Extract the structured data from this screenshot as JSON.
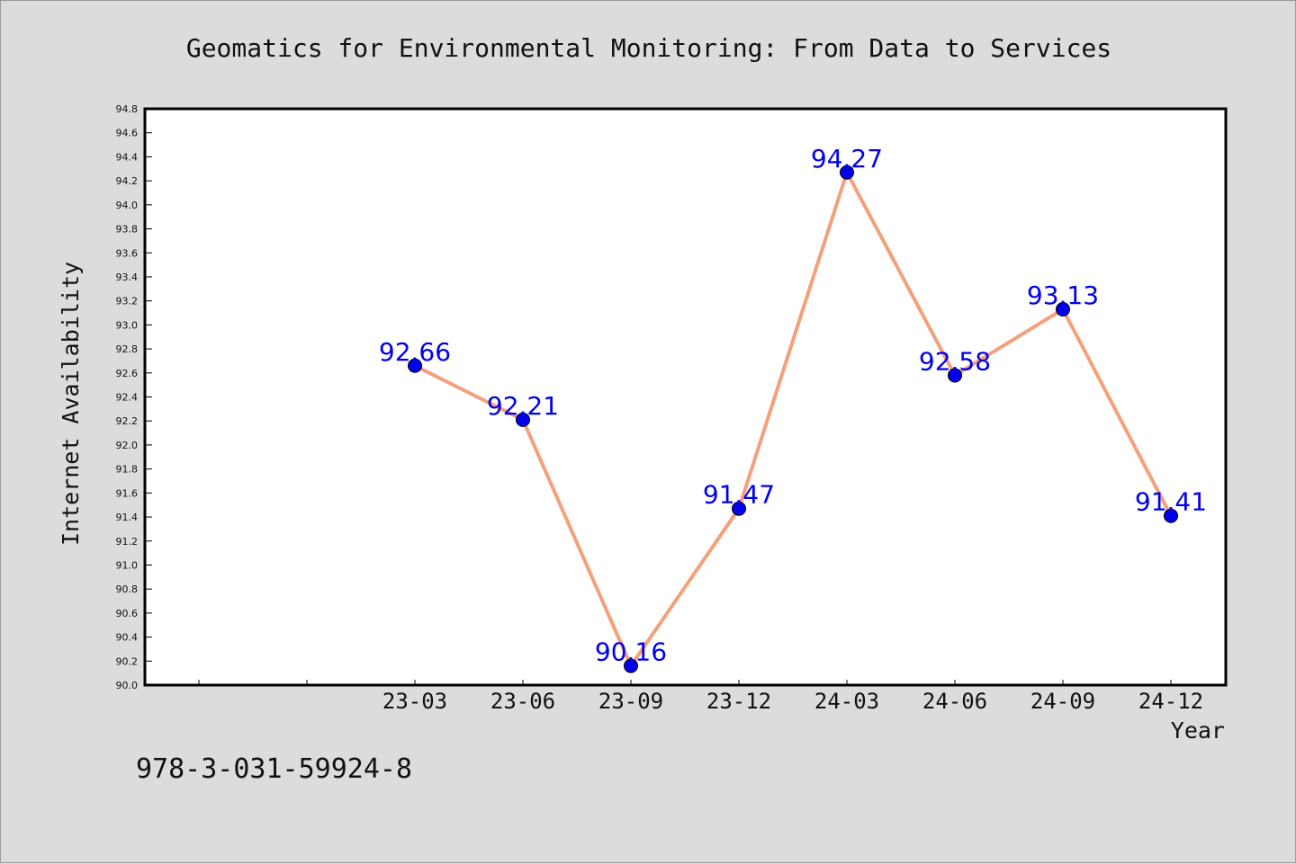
{
  "chart_data": {
    "type": "line",
    "title": "Geomatics for Environmental Monitoring: From Data to Services",
    "xlabel": "Year",
    "ylabel": "Internet Availability",
    "categories": [
      "23-03",
      "23-06",
      "23-09",
      "23-12",
      "24-03",
      "24-06",
      "24-09",
      "24-12"
    ],
    "values": [
      92.66,
      92.21,
      90.16,
      91.47,
      94.27,
      92.58,
      93.13,
      91.41
    ],
    "data_labels": [
      "92.66",
      "92.21",
      "90.16",
      "91.47",
      "94.27",
      "92.58",
      "93.13",
      "91.41"
    ],
    "ylim": [
      90.0,
      94.8
    ],
    "y_ticks": [
      "90.0",
      "90.2",
      "90.4",
      "90.6",
      "90.8",
      "91.0",
      "91.2",
      "91.4",
      "91.6",
      "91.8",
      "92.0",
      "92.2",
      "92.4",
      "92.6",
      "92.8",
      "93.0",
      "93.2",
      "93.4",
      "93.6",
      "93.8",
      "94.0",
      "94.2",
      "94.4",
      "94.6",
      "94.8"
    ],
    "grid": false,
    "legend": "none",
    "line_color": "#f4a07a",
    "marker_color": "#0000ee",
    "label_color": "#0000ee",
    "footnote": "978-3-031-59924-8"
  }
}
